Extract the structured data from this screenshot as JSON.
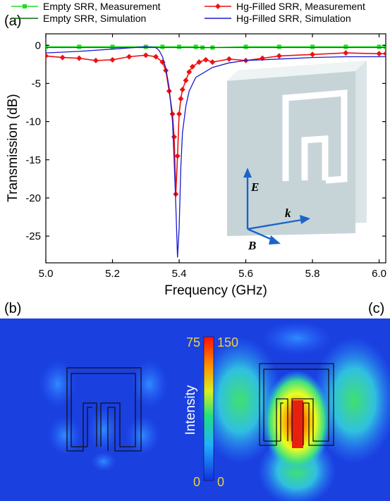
{
  "figure": {
    "panel_a": "(a)",
    "panel_b": "(b)",
    "panel_c": "(c)"
  },
  "chart_data": {
    "type": "line",
    "xlabel": "Frequency (GHz)",
    "ylabel": "Transmission (dB)",
    "xlim": [
      5.0,
      6.02
    ],
    "ylim": [
      -28.5,
      1.5
    ],
    "xticks": [
      "5.0",
      "5.2",
      "5.4",
      "5.6",
      "5.8",
      "6.0"
    ],
    "xtick_values": [
      5.0,
      5.2,
      5.4,
      5.6,
      5.8,
      6.0
    ],
    "yticks": [
      "0",
      "-5",
      "-10",
      "-15",
      "-20",
      "-25"
    ],
    "ytick_values": [
      0,
      -5,
      -10,
      -15,
      -20,
      -25
    ],
    "grid": false,
    "legend_position": "top",
    "series": [
      {
        "name": "Empty SRR, Measurement",
        "color": "#22dd22",
        "style": "line+square-markers",
        "x": [
          5.0,
          5.1,
          5.2,
          5.3,
          5.35,
          5.4,
          5.45,
          5.47,
          5.5,
          5.6,
          5.7,
          5.8,
          5.9,
          6.0,
          6.02
        ],
        "y": [
          -0.2,
          -0.2,
          -0.2,
          -0.2,
          -0.2,
          -0.2,
          -0.2,
          -0.3,
          -0.3,
          -0.2,
          -0.2,
          -0.2,
          -0.2,
          -0.2,
          -0.2
        ]
      },
      {
        "name": "Hg-Filled SRR, Measurement",
        "color": "#ee1111",
        "style": "line+diamond-markers",
        "x": [
          5.0,
          5.05,
          5.1,
          5.15,
          5.2,
          5.25,
          5.3,
          5.33,
          5.35,
          5.36,
          5.37,
          5.38,
          5.385,
          5.39,
          5.395,
          5.4,
          5.405,
          5.41,
          5.42,
          5.43,
          5.44,
          5.46,
          5.48,
          5.5,
          5.55,
          5.6,
          5.65,
          5.7,
          5.8,
          5.9,
          6.0,
          6.02
        ],
        "y": [
          -1.4,
          -1.6,
          -1.7,
          -2.0,
          -1.9,
          -1.5,
          -1.3,
          -1.5,
          -2.2,
          -3.3,
          -6.0,
          -9.0,
          -12.0,
          -19.5,
          -14.5,
          -9.0,
          -7.0,
          -5.8,
          -4.6,
          -3.5,
          -2.8,
          -2.2,
          -1.9,
          -2.2,
          -1.8,
          -2.0,
          -1.7,
          -1.4,
          -1.2,
          -1.0,
          -1.1,
          -1.1
        ]
      },
      {
        "name": "Empty SRR, Simulation",
        "color": "#0b6b0b",
        "style": "line",
        "x": [
          5.0,
          5.2,
          5.4,
          5.6,
          5.8,
          6.0,
          6.02
        ],
        "y": [
          -0.3,
          -0.3,
          -0.3,
          -0.3,
          -0.3,
          -0.3,
          -0.3
        ]
      },
      {
        "name": "Hg-Filled SRR, Simulation",
        "color": "#1a1acc",
        "style": "line",
        "x": [
          5.0,
          5.1,
          5.2,
          5.25,
          5.3,
          5.33,
          5.34,
          5.35,
          5.36,
          5.37,
          5.38,
          5.385,
          5.39,
          5.395,
          5.4,
          5.405,
          5.41,
          5.42,
          5.43,
          5.45,
          5.5,
          5.55,
          5.6,
          5.7,
          5.8,
          5.9,
          6.0,
          6.02
        ],
        "y": [
          -1.0,
          -0.8,
          -0.5,
          -0.35,
          -0.2,
          -0.3,
          -0.7,
          -1.5,
          -3.0,
          -5.5,
          -10.0,
          -15.0,
          -21.0,
          -27.8,
          -24.0,
          -16.0,
          -11.5,
          -8.0,
          -6.0,
          -4.2,
          -2.9,
          -2.3,
          -2.0,
          -1.8,
          -1.6,
          -1.5,
          -1.5,
          -1.5
        ]
      }
    ]
  },
  "field_maps": {
    "colorbar_title": "Intensity",
    "left_scale_max": "75",
    "right_scale_max": "150",
    "left_scale_min": "0",
    "right_scale_min": "0",
    "background_color": "#1a40e0"
  },
  "inset": {
    "e_label": "E",
    "k_label": "k",
    "b_label": "B"
  }
}
